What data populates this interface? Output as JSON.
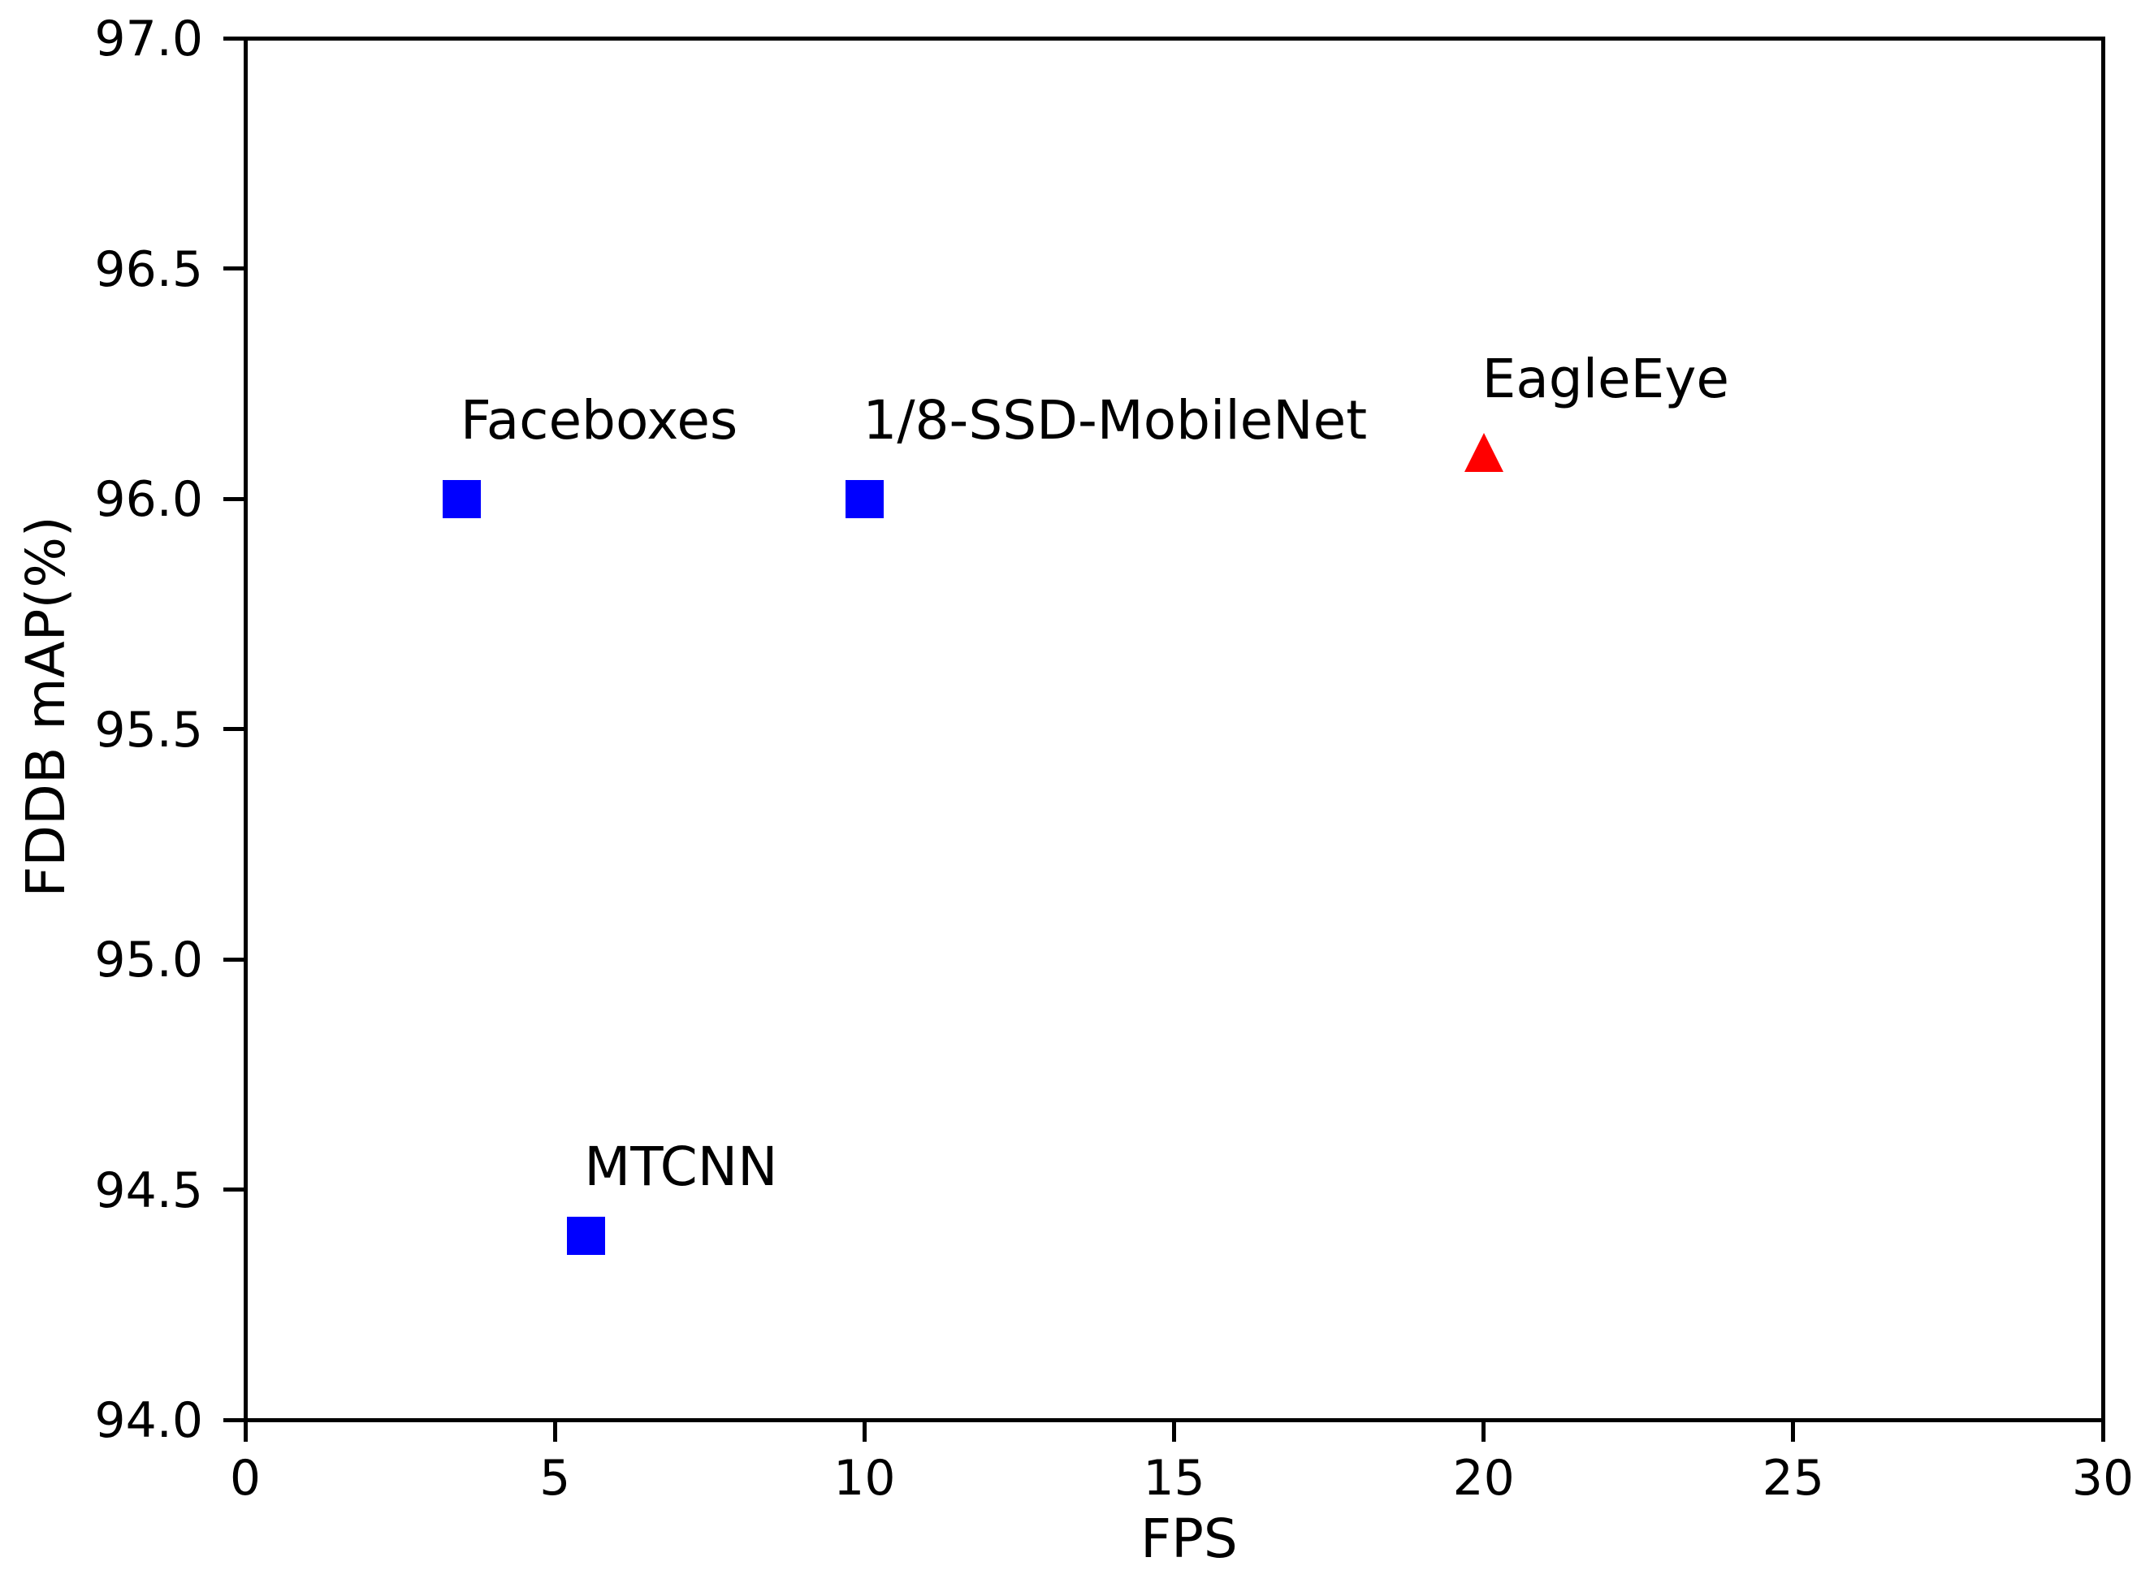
{
  "chart_data": {
    "type": "scatter",
    "title": "",
    "xlabel": "FPS",
    "ylabel": "FDDB mAP(%)",
    "xlim": [
      0,
      30
    ],
    "ylim": [
      94.0,
      97.0
    ],
    "grid": false,
    "legend_position": "none",
    "x_ticks": [
      {
        "value": 0,
        "label": "0"
      },
      {
        "value": 5,
        "label": "5"
      },
      {
        "value": 10,
        "label": "10"
      },
      {
        "value": 15,
        "label": "15"
      },
      {
        "value": 20,
        "label": "20"
      },
      {
        "value": 25,
        "label": "25"
      },
      {
        "value": 30,
        "label": "30"
      }
    ],
    "y_ticks": [
      {
        "value": 94.0,
        "label": "94.0"
      },
      {
        "value": 94.5,
        "label": "94.5"
      },
      {
        "value": 95.0,
        "label": "95.0"
      },
      {
        "value": 95.5,
        "label": "95.5"
      },
      {
        "value": 96.0,
        "label": "96.0"
      },
      {
        "value": 96.5,
        "label": "96.5"
      },
      {
        "value": 97.0,
        "label": "97.0"
      }
    ],
    "series": [
      {
        "name": "Faceboxes",
        "marker": "square",
        "color": "#0000ff",
        "x": 3.5,
        "y": 96.0
      },
      {
        "name": "1/8-SSD-MobileNet",
        "marker": "square",
        "color": "#0000ff",
        "x": 10.0,
        "y": 96.0
      },
      {
        "name": "MTCNN",
        "marker": "square",
        "color": "#0000ff",
        "x": 5.5,
        "y": 94.4
      },
      {
        "name": "EagleEye",
        "marker": "triangle",
        "color": "#ff0000",
        "x": 20.0,
        "y": 96.1
      }
    ],
    "annotations": [
      {
        "text": "Faceboxes",
        "x": 3.5,
        "y": 96.13
      },
      {
        "text": "1/8-SSD-MobileNet",
        "x": 10.0,
        "y": 96.13
      },
      {
        "text": "MTCNN",
        "x": 5.5,
        "y": 94.51
      },
      {
        "text": "EagleEye",
        "x": 20.0,
        "y": 96.22
      }
    ],
    "colors": {
      "axes": "#000000",
      "background": "#ffffff",
      "square_marker": "#0000ff",
      "triangle_marker": "#ff0000"
    }
  }
}
